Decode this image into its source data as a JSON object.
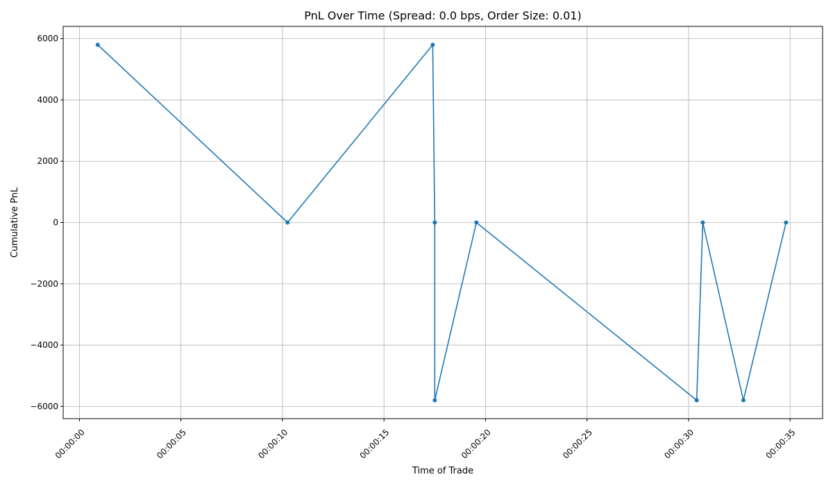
{
  "chart_data": {
    "type": "line",
    "title": "PnL Over Time (Spread: 0.0 bps, Order Size: 0.01)",
    "xlabel": "Time of Trade",
    "ylabel": "Cumulative PnL",
    "x_unit": "seconds",
    "xlim": [
      -0.8,
      36.6
    ],
    "ylim": [
      -6400,
      6400
    ],
    "x_ticks": [
      {
        "value": 0,
        "label": "00:00:00"
      },
      {
        "value": 5,
        "label": "00:00:05"
      },
      {
        "value": 10,
        "label": "00:00:10"
      },
      {
        "value": 15,
        "label": "00:00:15"
      },
      {
        "value": 20,
        "label": "00:00:20"
      },
      {
        "value": 25,
        "label": "00:00:25"
      },
      {
        "value": 30,
        "label": "00:00:30"
      },
      {
        "value": 35,
        "label": "00:00:35"
      }
    ],
    "y_ticks": [
      {
        "value": -6000,
        "label": "−6000"
      },
      {
        "value": -4000,
        "label": "−4000"
      },
      {
        "value": -2000,
        "label": "−2000"
      },
      {
        "value": 0,
        "label": "0"
      },
      {
        "value": 2000,
        "label": "2000"
      },
      {
        "value": 4000,
        "label": "4000"
      },
      {
        "value": 6000,
        "label": "6000"
      }
    ],
    "grid": true,
    "series": [
      {
        "color": "#1f77b4",
        "x": [
          0.9,
          10.25,
          17.4,
          17.5,
          17.5,
          19.55,
          30.4,
          30.7,
          32.7,
          34.8
        ],
        "y": [
          5800,
          0,
          5800,
          0,
          -5800,
          0,
          -5800,
          0,
          -5800,
          0
        ]
      }
    ]
  }
}
